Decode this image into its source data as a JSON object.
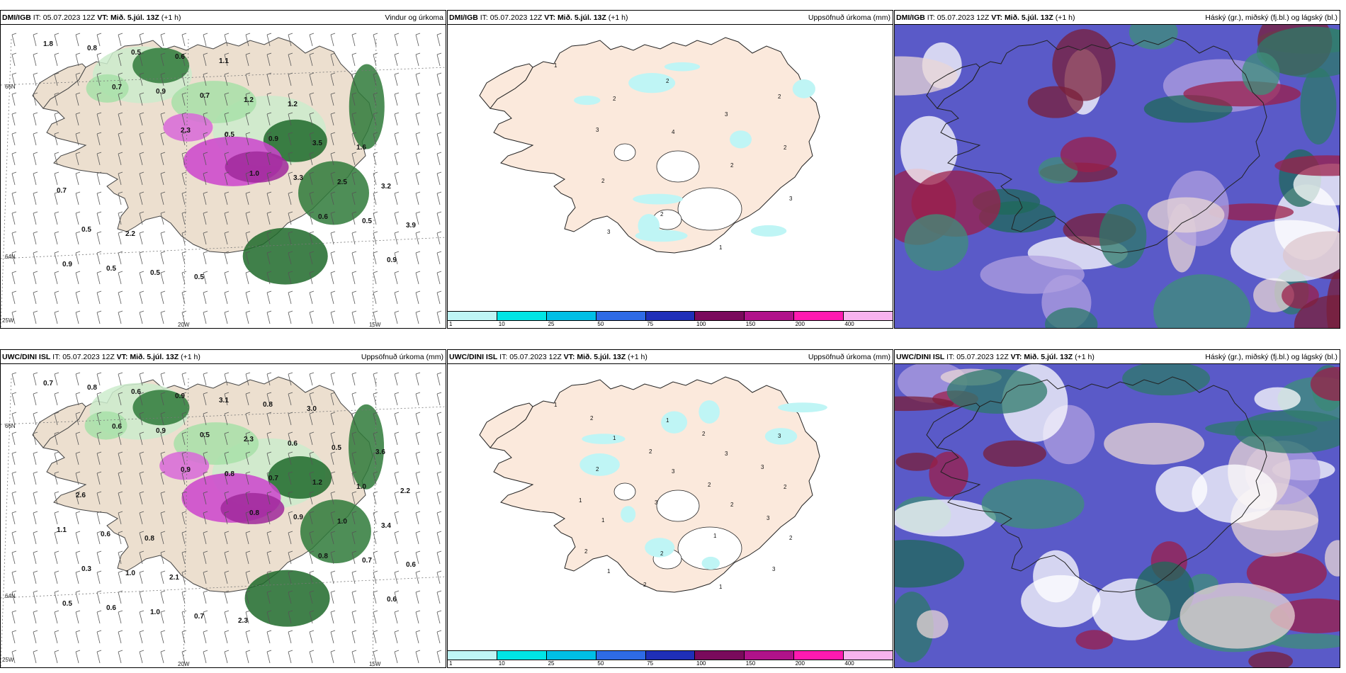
{
  "panels": [
    {
      "model": "DMI/IGB",
      "it_label": "IT:",
      "it_value": "05.07.2023 12Z",
      "vt_label": "VT:",
      "vt_value": "Mið. 5.júl. 13Z",
      "lead": "(+1 h)",
      "title": "Vindur og úrkoma"
    },
    {
      "model": "DMI/IGB",
      "it_label": "IT:",
      "it_value": "05.07.2023 12Z",
      "vt_label": "VT:",
      "vt_value": "Mið. 5.júl. 13Z",
      "lead": "(+1 h)",
      "title": "Uppsöfnuð úrkoma (mm)"
    },
    {
      "model": "DMI/IGB",
      "it_label": "IT:",
      "it_value": "05.07.2023 12Z",
      "vt_label": "VT:",
      "vt_value": "Mið. 5.júl. 13Z",
      "lead": "(+1 h)",
      "title": "Háský (gr.), miðský (fj.bl.) og lágský (bl.)"
    },
    {
      "model": "UWC/DINI ISL",
      "it_label": "IT:",
      "it_value": "05.07.2023 12Z",
      "vt_label": "VT:",
      "vt_value": "Mið. 5.júl. 13Z",
      "lead": "(+1 h)",
      "title": "Uppsöfnuð úrkoma (mm)"
    },
    {
      "model": "UWC/DINI ISL",
      "it_label": "IT:",
      "it_value": "05.07.2023 12Z",
      "vt_label": "VT:",
      "vt_value": "Mið. 5.júl. 13Z",
      "lead": "(+1 h)",
      "title": "Uppsöfnuð úrkoma (mm)"
    },
    {
      "model": "UWC/DINI ISL",
      "it_label": "IT:",
      "it_value": "05.07.2023 12Z",
      "vt_label": "VT:",
      "vt_value": "Mið. 5.júl. 13Z",
      "lead": "(+1 h)",
      "title": "Háský (gr.), miðský (fj.bl.) og lágský (bl.)"
    }
  ],
  "axes": {
    "lat66": "66N",
    "lat64": "64N",
    "lon25": "25W",
    "lon20": "20W",
    "lon15": "15W"
  },
  "colorbar": {
    "ticks": [
      "1",
      "10",
      "25",
      "50",
      "75",
      "100",
      "150",
      "200",
      "400"
    ],
    "colors": [
      "#bff5f5",
      "#00e5e5",
      "#00bfe6",
      "#2e6be6",
      "#1f2fb8",
      "#7a0a5c",
      "#b0128a",
      "#ff1ab0",
      "#f7b3ee"
    ]
  },
  "labels": {
    "wind_top": [
      "1.8",
      "0.7",
      "2.3",
      "1.0",
      "0.6",
      "0.9",
      "0.8",
      "0.9",
      "0.5",
      "3.3",
      "0.5",
      "0.9",
      "0.5",
      "0.7",
      "0.9",
      "2.5",
      "3.9",
      "0.5",
      "0.6",
      "1.2",
      "3.5",
      "3.2",
      "0.5",
      "0.5",
      "1.1",
      "1.2",
      "1.6",
      "0.7",
      "2.2",
      "0.5"
    ],
    "wind_bottom": [
      "0.7",
      "0.6",
      "0.9",
      "0.8",
      "0.8",
      "0.6",
      "0.8",
      "0.9",
      "0.8",
      "0.9",
      "0.7",
      "0.5",
      "0.6",
      "0.5",
      "0.7",
      "1.0",
      "0.6",
      "0.6",
      "0.9",
      "2.3",
      "1.2",
      "3.4",
      "0.3",
      "1.0",
      "3.1",
      "0.6",
      "1.0",
      "1.1",
      "1.0",
      "0.7",
      "0.8",
      "0.5",
      "2.2",
      "0.6",
      "2.1",
      "2.3",
      "3.0",
      "3.6",
      "2.6",
      "0.8"
    ],
    "precip_top": [
      "1",
      "2",
      "4",
      "2",
      "3",
      "3",
      "2",
      "3",
      "2",
      "2",
      "2",
      "1",
      "2",
      "3"
    ],
    "precip_bottom": [
      "1",
      "1",
      "3",
      "2",
      "2",
      "1",
      "1",
      "3",
      "2",
      "1",
      "2",
      "1",
      "3",
      "2",
      "3",
      "1",
      "3",
      "2",
      "2",
      "2",
      "3",
      "2",
      "2",
      "2",
      "3",
      "1"
    ]
  }
}
